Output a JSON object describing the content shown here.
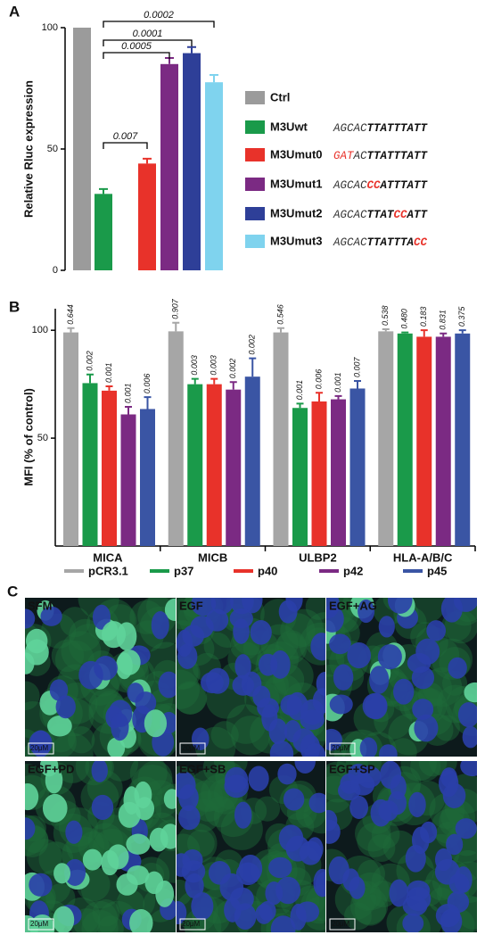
{
  "chart_data": [
    {
      "type": "bar",
      "panel_label": "A",
      "y_label": "Relative Rluc expression",
      "categories": [
        "Ctrl",
        "M3Uwt",
        "M3Umut0",
        "M3Umut1",
        "M3Umut2",
        "M3Umut3"
      ],
      "values": [
        100,
        31.5,
        44,
        85,
        89.5,
        77.5
      ],
      "errors": [
        0,
        2,
        2,
        2.5,
        2.5,
        3
      ],
      "colors": [
        "#9b9b9b",
        "#1a9a4a",
        "#e8322a",
        "#7b2a83",
        "#2e3f98",
        "#7fd3ee"
      ],
      "ylim": [
        0,
        100
      ],
      "yticks": [
        0,
        50,
        100
      ],
      "annotations": [
        "0.0002",
        "0.0001",
        "0.0005",
        "0.007"
      ],
      "sequences": [
        null,
        [
          {
            "text": "AGCAC",
            "color": "#333",
            "bold": false
          },
          {
            "text": "TTATTTATT",
            "color": "#111",
            "bold": true
          }
        ],
        [
          {
            "text": "GAT",
            "color": "#e8322a",
            "bold": false
          },
          {
            "text": "AC",
            "color": "#333",
            "bold": false
          },
          {
            "text": "TTATTTATT",
            "color": "#111",
            "bold": true
          }
        ],
        [
          {
            "text": "AGCAC",
            "color": "#333",
            "bold": false
          },
          {
            "text": "CC",
            "color": "#e8322a",
            "bold": true
          },
          {
            "text": "ATTTATT",
            "color": "#111",
            "bold": true
          }
        ],
        [
          {
            "text": "AGCAC",
            "color": "#333",
            "bold": false
          },
          {
            "text": "TTAT",
            "color": "#111",
            "bold": true
          },
          {
            "text": "CC",
            "color": "#e8322a",
            "bold": true
          },
          {
            "text": "ATT",
            "color": "#111",
            "bold": true
          }
        ],
        [
          {
            "text": "AGCAC",
            "color": "#333",
            "bold": false
          },
          {
            "text": "TTATTTA",
            "color": "#111",
            "bold": true
          },
          {
            "text": "CC",
            "color": "#e8322a",
            "bold": true
          }
        ]
      ]
    },
    {
      "type": "grouped_bar",
      "panel_label": "B",
      "y_label": "MFI (% of control)",
      "categories": [
        "MICA",
        "MICB",
        "ULBP2",
        "HLA-A/B/C"
      ],
      "ylim": [
        0,
        110
      ],
      "yticks": [
        50,
        100
      ],
      "series": [
        {
          "name": "pCR3.1",
          "color": "#a6a6a6",
          "values": [
            99,
            99.5,
            99,
            99.5
          ],
          "errors": [
            2,
            4,
            2,
            1
          ],
          "annotations": [
            "0.644",
            "0.907",
            "0.546",
            "0.538"
          ]
        },
        {
          "name": "p37",
          "color": "#1a9a4a",
          "values": [
            75.5,
            75,
            64,
            98.5
          ],
          "errors": [
            4,
            2.5,
            2,
            0.5
          ],
          "annotations": [
            "0.002",
            "0.003",
            "0.001",
            "0.480"
          ]
        },
        {
          "name": "p40",
          "color": "#e8322a",
          "values": [
            72,
            75,
            67,
            97
          ],
          "errors": [
            2,
            2.5,
            4,
            3
          ],
          "annotations": [
            "0.001",
            "0.003",
            "0.006",
            "0.183"
          ]
        },
        {
          "name": "p42",
          "color": "#7b2a83",
          "values": [
            61,
            72.5,
            68,
            97
          ],
          "errors": [
            3.5,
            3.5,
            1.5,
            1.5
          ],
          "annotations": [
            "0.001",
            "0.002",
            "0.001",
            "0.831"
          ]
        },
        {
          "name": "p45",
          "color": "#3a55a4",
          "values": [
            63.5,
            78.5,
            73,
            98.5
          ],
          "errors": [
            5.5,
            8.5,
            3.5,
            1.5
          ],
          "annotations": [
            "0.006",
            "0.002",
            "0.007",
            "0.375"
          ]
        }
      ]
    }
  ],
  "panel_c": {
    "label": "C",
    "images": [
      {
        "title": "SFM",
        "scale_bar": "20μM"
      },
      {
        "title": "EGF",
        "scale_bar": "20μM"
      },
      {
        "title": "EGF+AG",
        "scale_bar": "20μM"
      },
      {
        "title": "EGF+PD",
        "scale_bar": "20μM"
      },
      {
        "title": "EGF+SB",
        "scale_bar": "20μM"
      },
      {
        "title": "EGF+SP",
        "scale_bar": "20μM"
      }
    ]
  }
}
